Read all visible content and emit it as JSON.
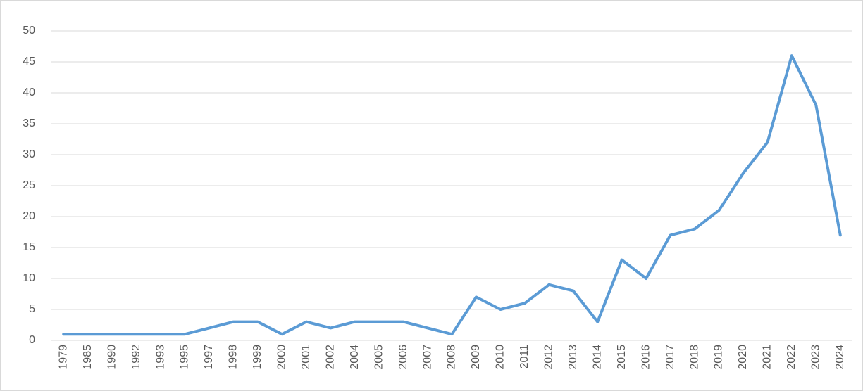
{
  "chart_data": {
    "type": "line",
    "categories": [
      "1979",
      "1985",
      "1990",
      "1992",
      "1993",
      "1995",
      "1997",
      "1998",
      "1999",
      "2000",
      "2001",
      "2002",
      "2004",
      "2005",
      "2006",
      "2007",
      "2008",
      "2009",
      "2010",
      "2011",
      "2012",
      "2013",
      "2014",
      "2015",
      "2016",
      "2017",
      "2018",
      "2019",
      "2020",
      "2021",
      "2022",
      "2023",
      "2024"
    ],
    "series": [
      {
        "color": "#5b9bd5",
        "values": [
          1,
          1,
          1,
          1,
          1,
          1,
          2,
          3,
          3,
          1,
          3,
          2,
          3,
          3,
          3,
          2,
          1,
          7,
          5,
          6,
          9,
          8,
          3,
          13,
          10,
          17,
          18,
          21,
          27,
          32,
          46,
          38,
          17
        ]
      }
    ],
    "ylim": [
      0,
      50
    ],
    "yticks": [
      0,
      5,
      10,
      15,
      20,
      25,
      30,
      35,
      40,
      45,
      50
    ],
    "grid": true
  }
}
